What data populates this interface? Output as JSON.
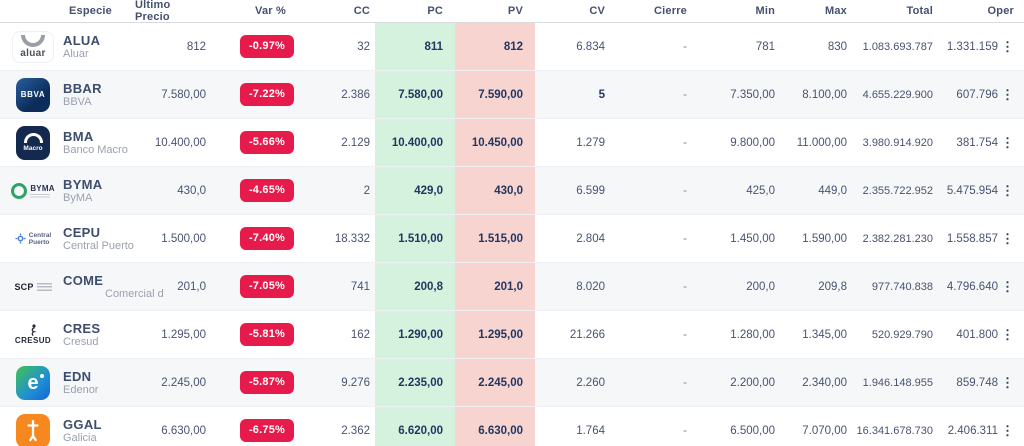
{
  "table": {
    "columns": [
      "Especie",
      "Último Precio",
      "Var %",
      "CC",
      "PC",
      "PV",
      "CV",
      "Cierre",
      "Min",
      "Max",
      "Total",
      "Oper"
    ],
    "rows": [
      {
        "symbol": "ALUA",
        "name": "Aluar",
        "logo": "aluar",
        "logo_label": "aluar",
        "ultimo": "812",
        "var": "-0.97%",
        "cc": "32",
        "pc": "811",
        "pv": "812",
        "cv": "6.834",
        "cierre": "-",
        "min": "781",
        "max": "830",
        "total": "1.083.693.787",
        "oper": "1.331.159"
      },
      {
        "symbol": "BBAR",
        "name": "BBVA",
        "logo": "bbva",
        "logo_label": "BBVA",
        "ultimo": "7.580,00",
        "var": "-7.22%",
        "cc": "2.386",
        "pc": "7.580,00",
        "pv": "7.590,00",
        "cv": "5",
        "cv_strong": true,
        "cierre": "-",
        "min": "7.350,00",
        "max": "8.100,00",
        "total": "4.655.229.900",
        "oper": "607.796"
      },
      {
        "symbol": "BMA",
        "name": "Banco Macro",
        "logo": "macro",
        "logo_label": "Macro",
        "ultimo": "10.400,00",
        "var": "-5.66%",
        "cc": "2.129",
        "pc": "10.400,00",
        "pv": "10.450,00",
        "cv": "1.279",
        "cierre": "-",
        "min": "9.800,00",
        "max": "11.000,00",
        "total": "3.980.914.920",
        "oper": "381.754"
      },
      {
        "symbol": "BYMA",
        "name": "ByMA",
        "logo": "byma",
        "logo_label": "BYMA",
        "ultimo": "430,0",
        "var": "-4.65%",
        "cc": "2",
        "pc": "429,0",
        "pv": "430,0",
        "cv": "6.599",
        "cierre": "-",
        "min": "425,0",
        "max": "449,0",
        "total": "2.355.722.952",
        "oper": "5.475.954"
      },
      {
        "symbol": "CEPU",
        "name": "Central Puerto",
        "logo": "cepu",
        "logo_label": "Central Puerto",
        "ultimo": "1.500,00",
        "var": "-7.40%",
        "cc": "18.332",
        "pc": "1.510,00",
        "pv": "1.515,00",
        "cv": "2.804",
        "cierre": "-",
        "min": "1.450,00",
        "max": "1.590,00",
        "total": "2.382.281.230",
        "oper": "1.558.857"
      },
      {
        "symbol": "COME",
        "name": "Comercial d",
        "sub_indent": true,
        "logo": "come",
        "logo_label": "SCP",
        "ultimo": "201,0",
        "var": "-7.05%",
        "cc": "741",
        "pc": "200,8",
        "pv": "201,0",
        "cv": "8.020",
        "cierre": "-",
        "min": "200,0",
        "max": "209,8",
        "total": "977.740.838",
        "oper": "4.796.640"
      },
      {
        "symbol": "CRES",
        "name": "Cresud",
        "logo": "cresud",
        "logo_label": "CRESUD",
        "ultimo": "1.295,00",
        "var": "-5.81%",
        "cc": "162",
        "pc": "1.290,00",
        "pv": "1.295,00",
        "cv": "21.266",
        "cierre": "-",
        "min": "1.280,00",
        "max": "1.345,00",
        "total": "520.929.790",
        "oper": "401.800"
      },
      {
        "symbol": "EDN",
        "name": "Edenor",
        "logo": "edenor",
        "logo_label": "e",
        "ultimo": "2.245,00",
        "var": "-5.87%",
        "cc": "9.276",
        "pc": "2.235,00",
        "pv": "2.245,00",
        "cv": "2.260",
        "cierre": "-",
        "min": "2.200,00",
        "max": "2.340,00",
        "total": "1.946.148.955",
        "oper": "859.748"
      },
      {
        "symbol": "GGAL",
        "name": "Galicia",
        "logo": "galicia",
        "logo_label": "",
        "ultimo": "6.630,00",
        "var": "-6.75%",
        "cc": "2.362",
        "pc": "6.620,00",
        "pv": "6.630,00",
        "cv": "1.764",
        "cierre": "-",
        "min": "6.500,00",
        "max": "7.070,00",
        "total": "16.341.678.730",
        "oper": "2.406.311"
      }
    ]
  },
  "icons": {
    "kebab": "⋮"
  },
  "colors": {
    "negative_badge": "#e61a4b",
    "pc_column_bg": "#d5f2de",
    "pv_column_bg": "#f8d4d1",
    "header_text": "#44506e"
  }
}
